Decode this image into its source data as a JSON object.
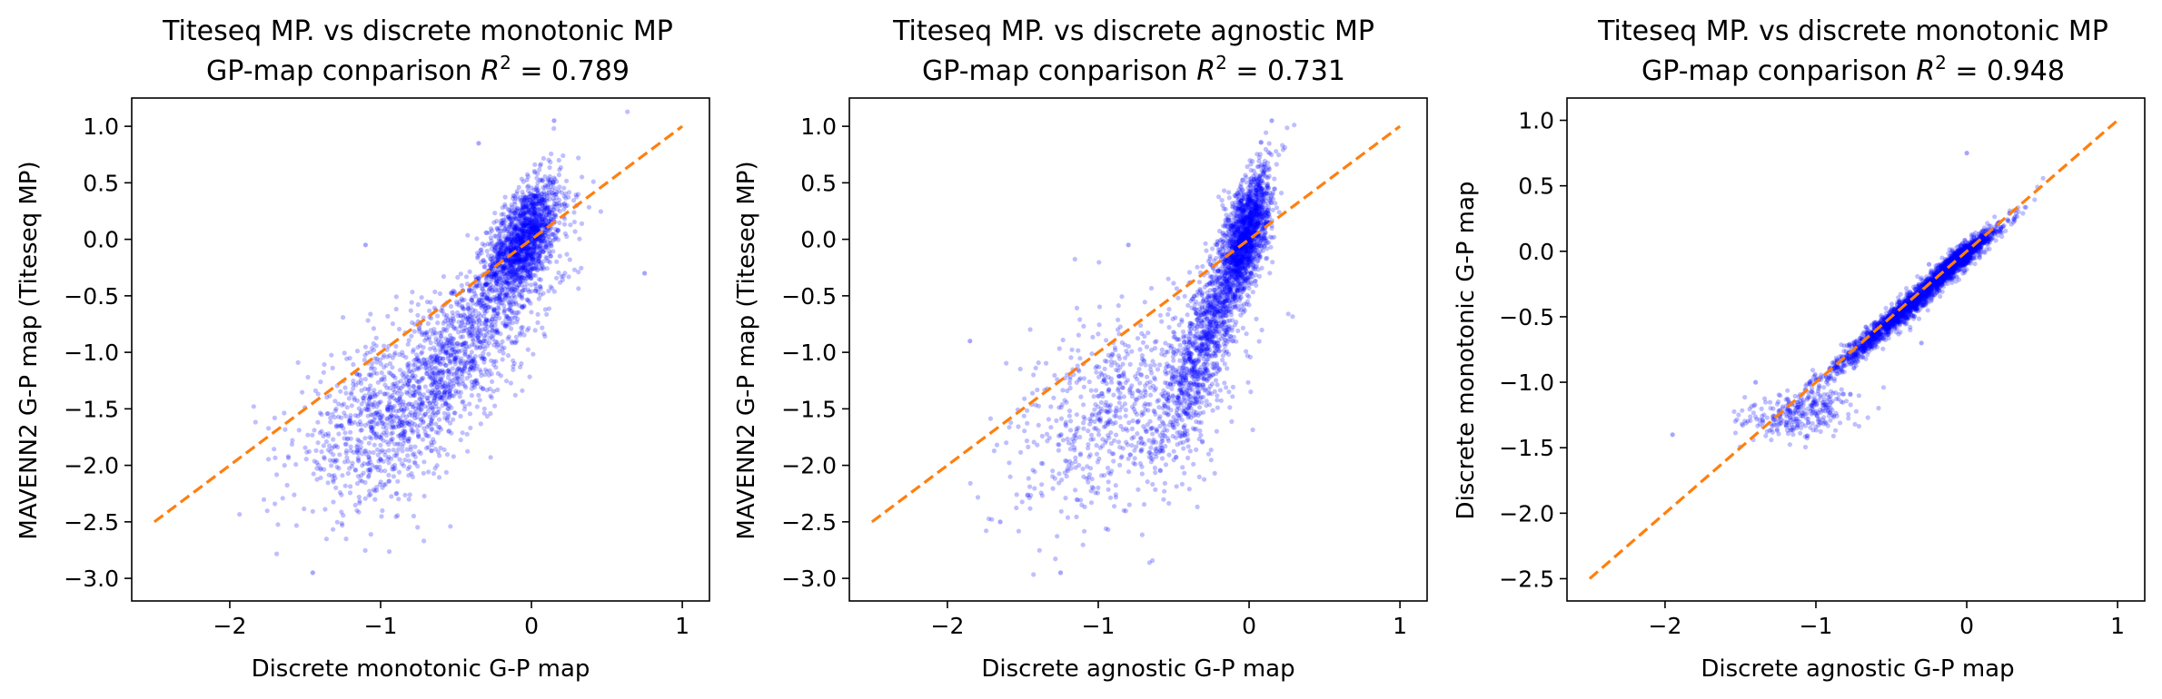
{
  "chart_data": [
    {
      "type": "scatter",
      "title_line1": "Titeseq MP. vs discrete monotonic MP",
      "title_line2_prefix": "GP-map conparison ",
      "r2": "0.789",
      "xlabel": "Discrete monotonic G-P map",
      "ylabel": "MAVENN2 G-P map (Titeseq MP)",
      "xlim": [
        -2.65,
        1.18
      ],
      "ylim": [
        -3.2,
        1.25
      ],
      "xticks": [
        -2,
        -1,
        0,
        1
      ],
      "yticks": [
        -3.0,
        -2.5,
        -2.0,
        -1.5,
        -1.0,
        -0.5,
        0.0,
        0.5,
        1.0
      ],
      "xtick_labels": [
        "−2",
        "−1",
        "0",
        "1"
      ],
      "ytick_labels": [
        "−3.0",
        "−2.5",
        "−2.0",
        "−1.5",
        "−1.0",
        "−0.5",
        "0.0",
        "0.5",
        "1.0"
      ],
      "diagonal": {
        "from": [
          -2.5,
          -2.5
        ],
        "to": [
          1.0,
          1.0
        ]
      },
      "point_color": "#0000ff",
      "line_color": "#ff7f0e",
      "clusters": [
        {
          "cx": -0.05,
          "cy": 0.0,
          "sx": 0.12,
          "sy": 0.26,
          "rho": 0.55,
          "n": 1600
        },
        {
          "cx": -0.45,
          "cy": -0.95,
          "sx": 0.3,
          "sy": 0.5,
          "rho": 0.75,
          "n": 1100
        },
        {
          "cx": -1.0,
          "cy": -1.6,
          "sx": 0.28,
          "sy": 0.38,
          "rho": 0.4,
          "n": 700
        }
      ],
      "outliers": [
        [
          0.75,
          -0.3
        ],
        [
          -1.45,
          -2.95
        ],
        [
          -0.35,
          0.85
        ],
        [
          0.3,
          0.3
        ],
        [
          0.15,
          1.05
        ],
        [
          -1.1,
          -0.05
        ]
      ]
    },
    {
      "type": "scatter",
      "title_line1": "Titeseq MP. vs discrete agnostic MP",
      "title_line2_prefix": "GP-map conparison ",
      "r2": "0.731",
      "xlabel": "Discrete agnostic G-P map",
      "ylabel": "MAVENN2 G-P map (Titeseq MP)",
      "xlim": [
        -2.65,
        1.18
      ],
      "ylim": [
        -3.2,
        1.25
      ],
      "xticks": [
        -2,
        -1,
        0,
        1
      ],
      "yticks": [
        -3.0,
        -2.5,
        -2.0,
        -1.5,
        -1.0,
        -0.5,
        0.0,
        0.5,
        1.0
      ],
      "xtick_labels": [
        "−2",
        "−1",
        "0",
        "1"
      ],
      "ytick_labels": [
        "−3.0",
        "−2.5",
        "−2.0",
        "−1.5",
        "−1.0",
        "−0.5",
        "0.0",
        "0.5",
        "1.0"
      ],
      "diagonal": {
        "from": [
          -2.5,
          -2.5
        ],
        "to": [
          1.0,
          1.0
        ]
      },
      "point_color": "#0000ff",
      "line_color": "#ff7f0e",
      "clusters": [
        {
          "cx": -0.02,
          "cy": 0.05,
          "sx": 0.08,
          "sy": 0.28,
          "rho": 0.6,
          "n": 1600
        },
        {
          "cx": -0.28,
          "cy": -0.85,
          "sx": 0.15,
          "sy": 0.5,
          "rho": 0.8,
          "n": 1100
        },
        {
          "cx": -0.85,
          "cy": -1.55,
          "sx": 0.35,
          "sy": 0.45,
          "rho": 0.35,
          "n": 700
        }
      ],
      "outliers": [
        [
          -1.65,
          -2.5
        ],
        [
          -1.25,
          -2.95
        ],
        [
          0.15,
          1.05
        ],
        [
          -1.85,
          -0.9
        ],
        [
          -0.8,
          -0.05
        ]
      ]
    },
    {
      "type": "scatter",
      "title_line1": "Titeseq MP. vs discrete monotonic MP",
      "title_line2_prefix": "GP-map conparison ",
      "r2": "0.948",
      "xlabel": "Discrete agnostic G-P map",
      "ylabel": "Discrete monotonic G-P map",
      "xlim": [
        -2.65,
        1.18
      ],
      "ylim": [
        -2.67,
        1.17
      ],
      "xticks": [
        -2,
        -1,
        0,
        1
      ],
      "yticks": [
        -2.5,
        -2.0,
        -1.5,
        -1.0,
        -0.5,
        0.0,
        0.5,
        1.0
      ],
      "xtick_labels": [
        "−2",
        "−1",
        "0",
        "1"
      ],
      "ytick_labels": [
        "−2.5",
        "−2.0",
        "−1.5",
        "−1.0",
        "−0.5",
        "0.0",
        "0.5",
        "1.0"
      ],
      "diagonal": {
        "from": [
          -2.5,
          -2.5
        ],
        "to": [
          1.0,
          1.0
        ]
      },
      "point_color": "#0000ff",
      "line_color": "#ff7f0e",
      "clusters": [
        {
          "cx": -0.35,
          "cy": -0.38,
          "sx": 0.28,
          "sy": 0.28,
          "rho": 0.985,
          "n": 2200
        },
        {
          "cx": -0.05,
          "cy": -0.05,
          "sx": 0.08,
          "sy": 0.08,
          "rho": 0.9,
          "n": 900
        },
        {
          "cx": -1.1,
          "cy": -1.25,
          "sx": 0.18,
          "sy": 0.1,
          "rho": 0.3,
          "n": 300
        }
      ],
      "outliers": [
        [
          -1.95,
          -1.4
        ],
        [
          0.0,
          0.75
        ],
        [
          -0.25,
          -0.1
        ],
        [
          -1.4,
          -1.0
        ],
        [
          -0.3,
          -0.7
        ],
        [
          0.2,
          0.15
        ]
      ]
    }
  ]
}
